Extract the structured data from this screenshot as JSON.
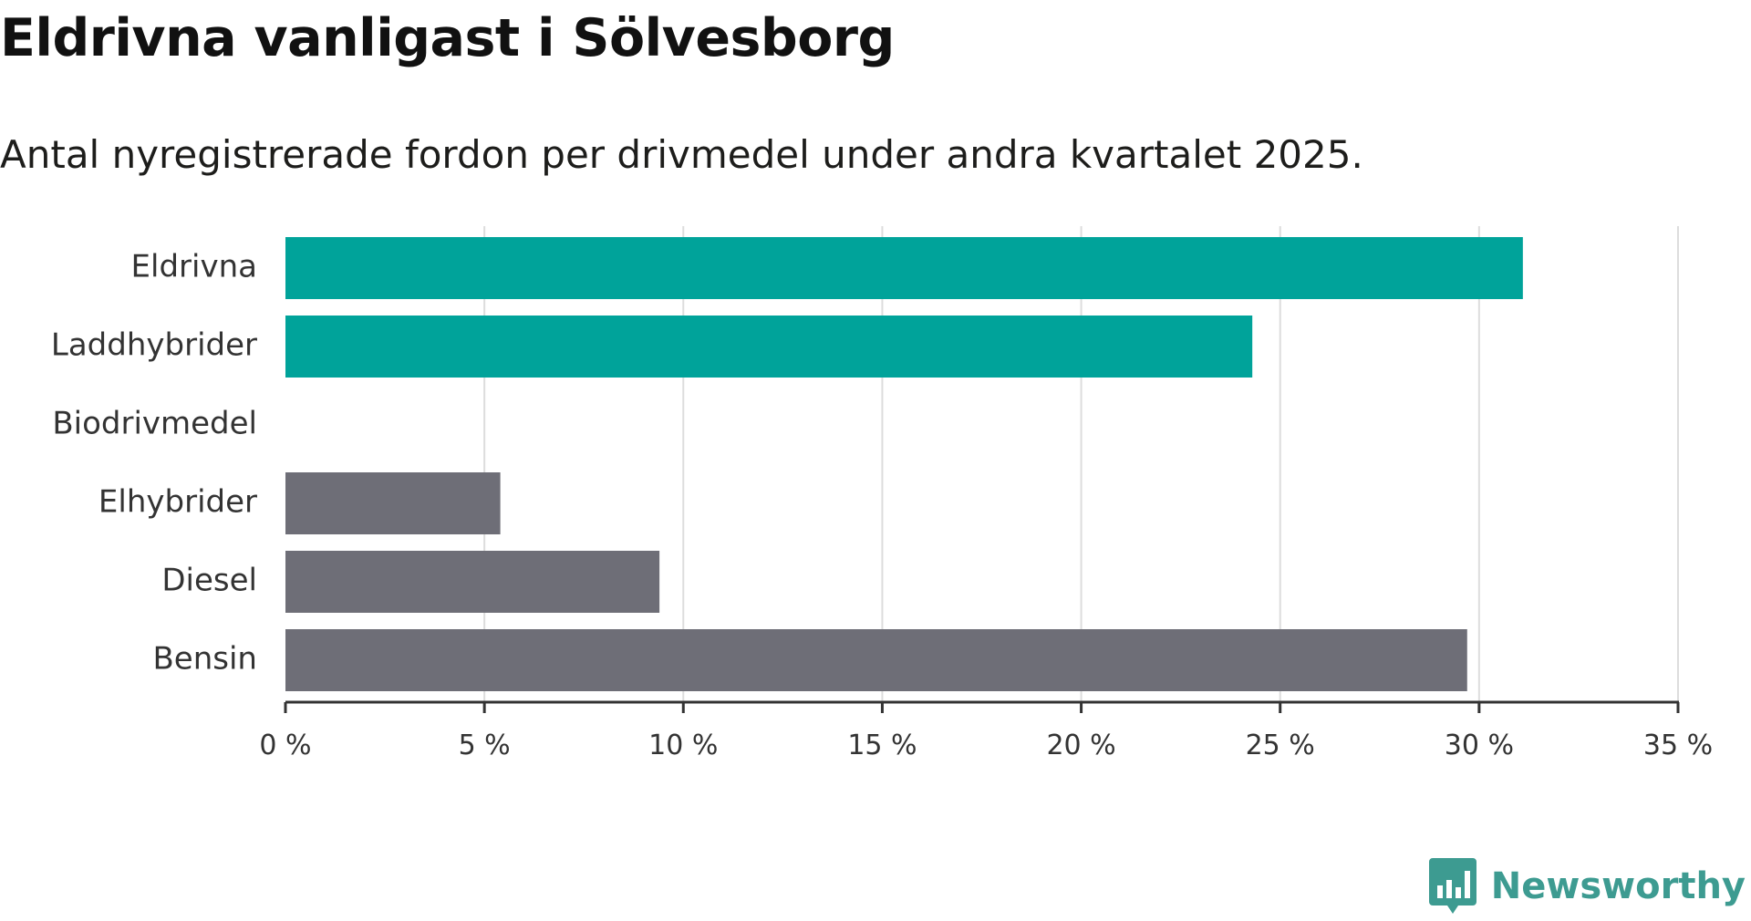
{
  "title": "Eldrivna vanligast i Sölvesborg",
  "subtitle": "Antal nyregistrerade fordon per drivmedel under andra kvartalet 2025.",
  "brand": {
    "name": "Newsworthy",
    "logo_icon": "bar-chart-speech-bubble-icon",
    "color": "#3d9b91"
  },
  "colors": {
    "highlight": "#00a39a",
    "other": "#6e6e77",
    "grid": "#dddddd",
    "axis": "#333333"
  },
  "chart_data": {
    "type": "bar",
    "orientation": "horizontal",
    "title": "Eldrivna vanligast i Sölvesborg",
    "subtitle": "Antal nyregistrerade fordon per drivmedel under andra kvartalet 2025.",
    "xlabel": "",
    "ylabel": "",
    "categories": [
      "Eldrivna",
      "Laddhybrider",
      "Biodrivmedel",
      "Elhybrider",
      "Diesel",
      "Bensin"
    ],
    "values": [
      31.1,
      24.3,
      0,
      5.4,
      9.4,
      29.7
    ],
    "bar_colors": [
      "#00a39a",
      "#00a39a",
      "#6e6e77",
      "#6e6e77",
      "#6e6e77",
      "#6e6e77"
    ],
    "xlim": [
      0,
      35
    ],
    "x_ticks": [
      0,
      5,
      10,
      15,
      20,
      25,
      30,
      35
    ],
    "x_tick_labels": [
      "0 %",
      "5 %",
      "10 %",
      "15 %",
      "20 %",
      "25 %",
      "30 %",
      "35 %"
    ],
    "unit": "%",
    "grid": "vertical",
    "legend": "none"
  }
}
